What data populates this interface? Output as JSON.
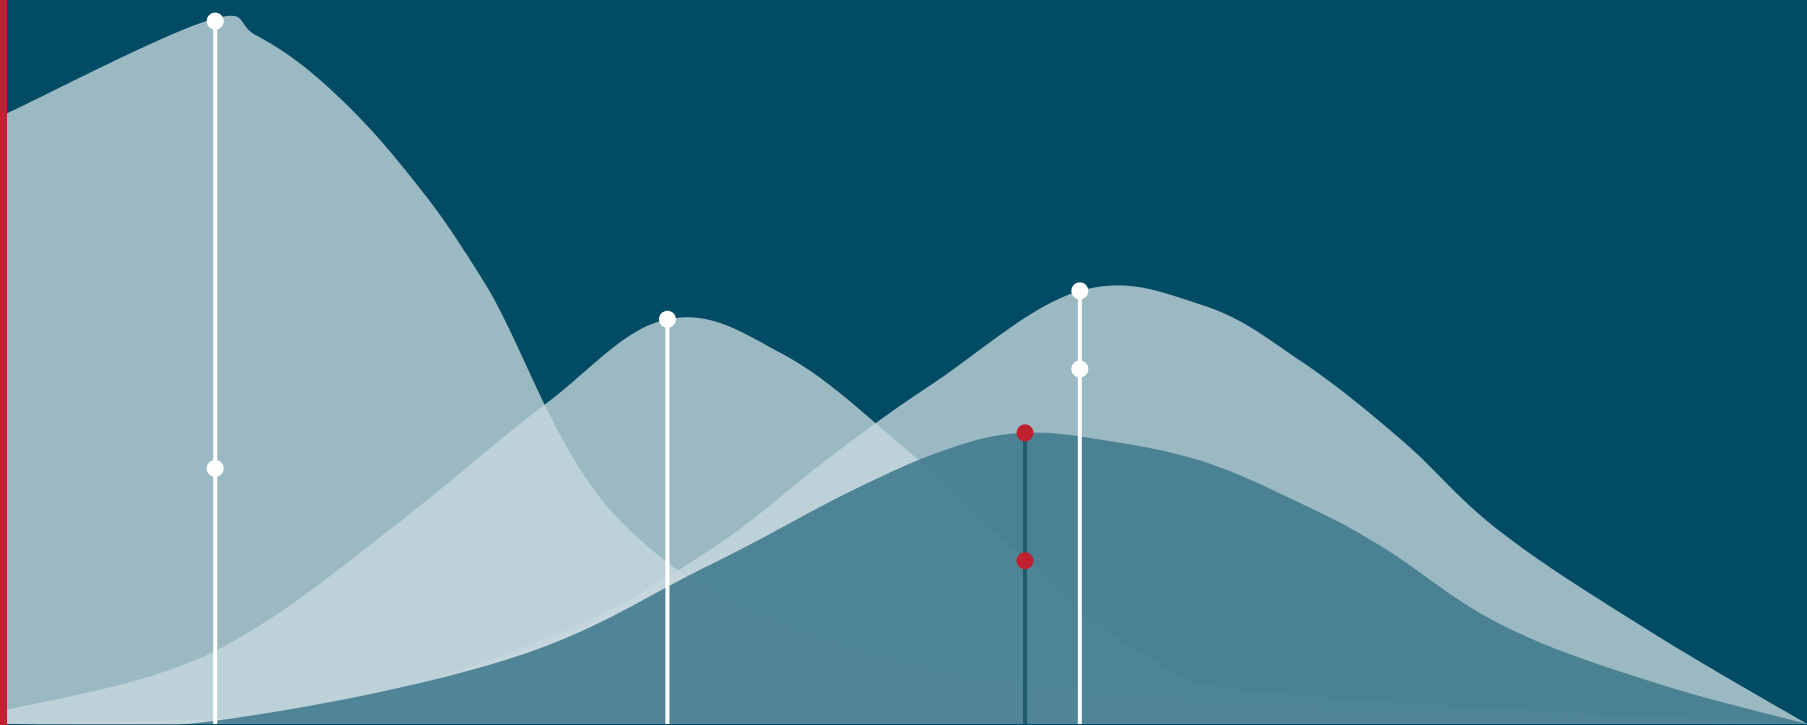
{
  "chart_data": {
    "type": "area",
    "title": "",
    "xlabel": "",
    "ylabel": "",
    "grid": false,
    "legend": "none",
    "series": [
      {
        "x": [
          0,
          200,
          250,
          320,
          400,
          480,
          620,
          860,
          1200,
          1807
        ],
        "y": [
          0.86,
          0.99,
          0.97,
          0.9,
          0.78,
          0.62,
          0.28,
          0.1,
          0.03,
          0.0
        ],
        "markers": [
          {
            "x": 209,
            "y": 0.99
          },
          {
            "x": 209,
            "y": 0.36
          }
        ]
      },
      {
        "x": [
          0,
          150,
          255,
          390,
          540,
          663,
          780,
          900,
          1000,
          1150,
          1300,
          1807
        ],
        "y": [
          0.02,
          0.07,
          0.14,
          0.28,
          0.45,
          0.57,
          0.52,
          0.39,
          0.26,
          0.09,
          0.04,
          0.0
        ],
        "markers": [
          {
            "x": 663,
            "y": 0.57
          }
        ]
      },
      {
        "x": [
          0,
          300,
          540,
          700,
          830,
          930,
          1077,
          1200,
          1300,
          1400,
          1500,
          1650,
          1807
        ],
        "y": [
          0.0,
          0.02,
          0.12,
          0.24,
          0.38,
          0.48,
          0.61,
          0.59,
          0.51,
          0.4,
          0.27,
          0.13,
          0.0
        ],
        "markers": [
          {
            "x": 1077,
            "y": 0.61
          },
          {
            "x": 1077,
            "y": 0.5
          }
        ]
      },
      {
        "x": [
          0,
          200,
          500,
          700,
          850,
          950,
          1022,
          1100,
          1200,
          1300,
          1380,
          1500,
          1650,
          1807
        ],
        "y": [
          0.0,
          0.003,
          0.09,
          0.22,
          0.33,
          0.39,
          0.41,
          0.4,
          0.37,
          0.31,
          0.25,
          0.14,
          0.06,
          0.0
        ],
        "markers": [
          {
            "x": 1022,
            "y": 0.41
          },
          {
            "x": 1022,
            "y": 0.23
          }
        ]
      }
    ],
    "colors": {
      "background": "#024b64",
      "light_area": "#c6d8de",
      "light_area_opacity": 0.78,
      "dark_area": "#3f7a8c",
      "dark_area_opacity": 0.88,
      "light_stem": "#ffffff",
      "dark_stem": "#1f5b6c",
      "dark_marker": "#c0202f",
      "accent": "#c0202f"
    }
  }
}
